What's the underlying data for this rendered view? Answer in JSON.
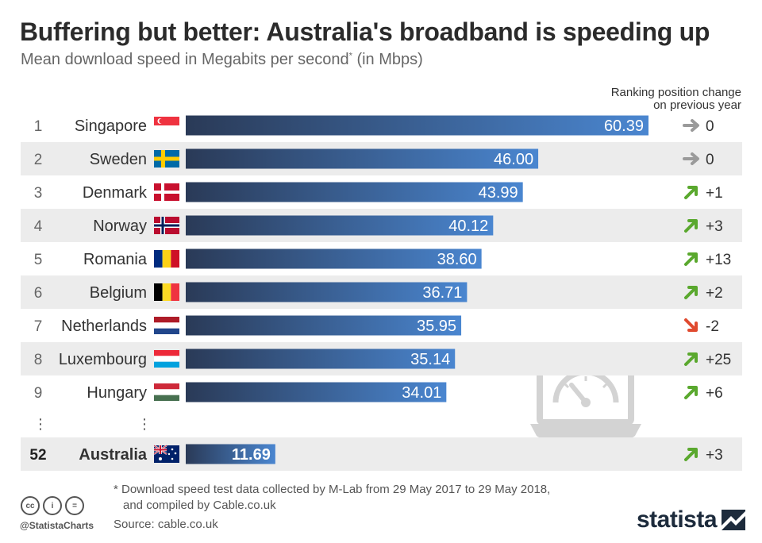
{
  "header": {
    "title": "Buffering but better: Australia's broadband is speeding up",
    "subtitle": "Mean download speed in Megabits per second",
    "subtitle_mark": "*",
    "subtitle_unit": " (in Mbps)"
  },
  "rank_column": {
    "line1": "Ranking position change",
    "line2": "on previous year"
  },
  "chart_data": {
    "type": "bar",
    "title": "Buffering but better: Australia's broadband is speeding up",
    "xlabel": "",
    "ylabel": "Mean download speed in Megabits per second (in Mbps)",
    "xlim": [
      0,
      60.39
    ],
    "categories": [
      "Singapore",
      "Sweden",
      "Denmark",
      "Norway",
      "Romania",
      "Belgium",
      "Netherlands",
      "Luxembourg",
      "Hungary",
      "Australia"
    ],
    "values": [
      60.39,
      46.0,
      43.99,
      40.12,
      38.6,
      36.71,
      35.95,
      35.14,
      34.01,
      11.69
    ],
    "value_labels": [
      "60.39",
      "46.00",
      "43.99",
      "40.12",
      "38.60",
      "36.71",
      "35.95",
      "35.14",
      "34.01",
      "11.69"
    ],
    "ranks": [
      "1",
      "2",
      "3",
      "4",
      "5",
      "6",
      "7",
      "8",
      "9",
      "52"
    ],
    "rank_change": [
      "0",
      "0",
      "+1",
      "+3",
      "+13",
      "+2",
      "-2",
      "+25",
      "+6",
      "+3"
    ],
    "change_direction": [
      "same",
      "same",
      "up",
      "up",
      "up",
      "up",
      "down",
      "up",
      "up",
      "up"
    ],
    "flags": [
      "singapore",
      "sweden",
      "denmark",
      "norway",
      "romania",
      "belgium",
      "netherlands",
      "luxembourg",
      "hungary",
      "australia"
    ],
    "highlight": "Australia",
    "ellipsis": "⋮",
    "colors": {
      "bar_start": "#2a3a57",
      "bar_end": "#4a86d0",
      "zebra": "#ececec",
      "up": "#5aa82e",
      "down": "#e04a2f",
      "same": "#9a9a9a"
    }
  },
  "footer": {
    "note_line1": "* Download speed test data collected by M-Lab from 29 May 2017 to 29 May 2018,",
    "note_line2": "and compiled by Cable.co.uk",
    "source": "Source: cable.co.uk",
    "handle": "@StatistaCharts",
    "brand": "statista",
    "license_icons": [
      "cc",
      "i",
      "="
    ]
  }
}
